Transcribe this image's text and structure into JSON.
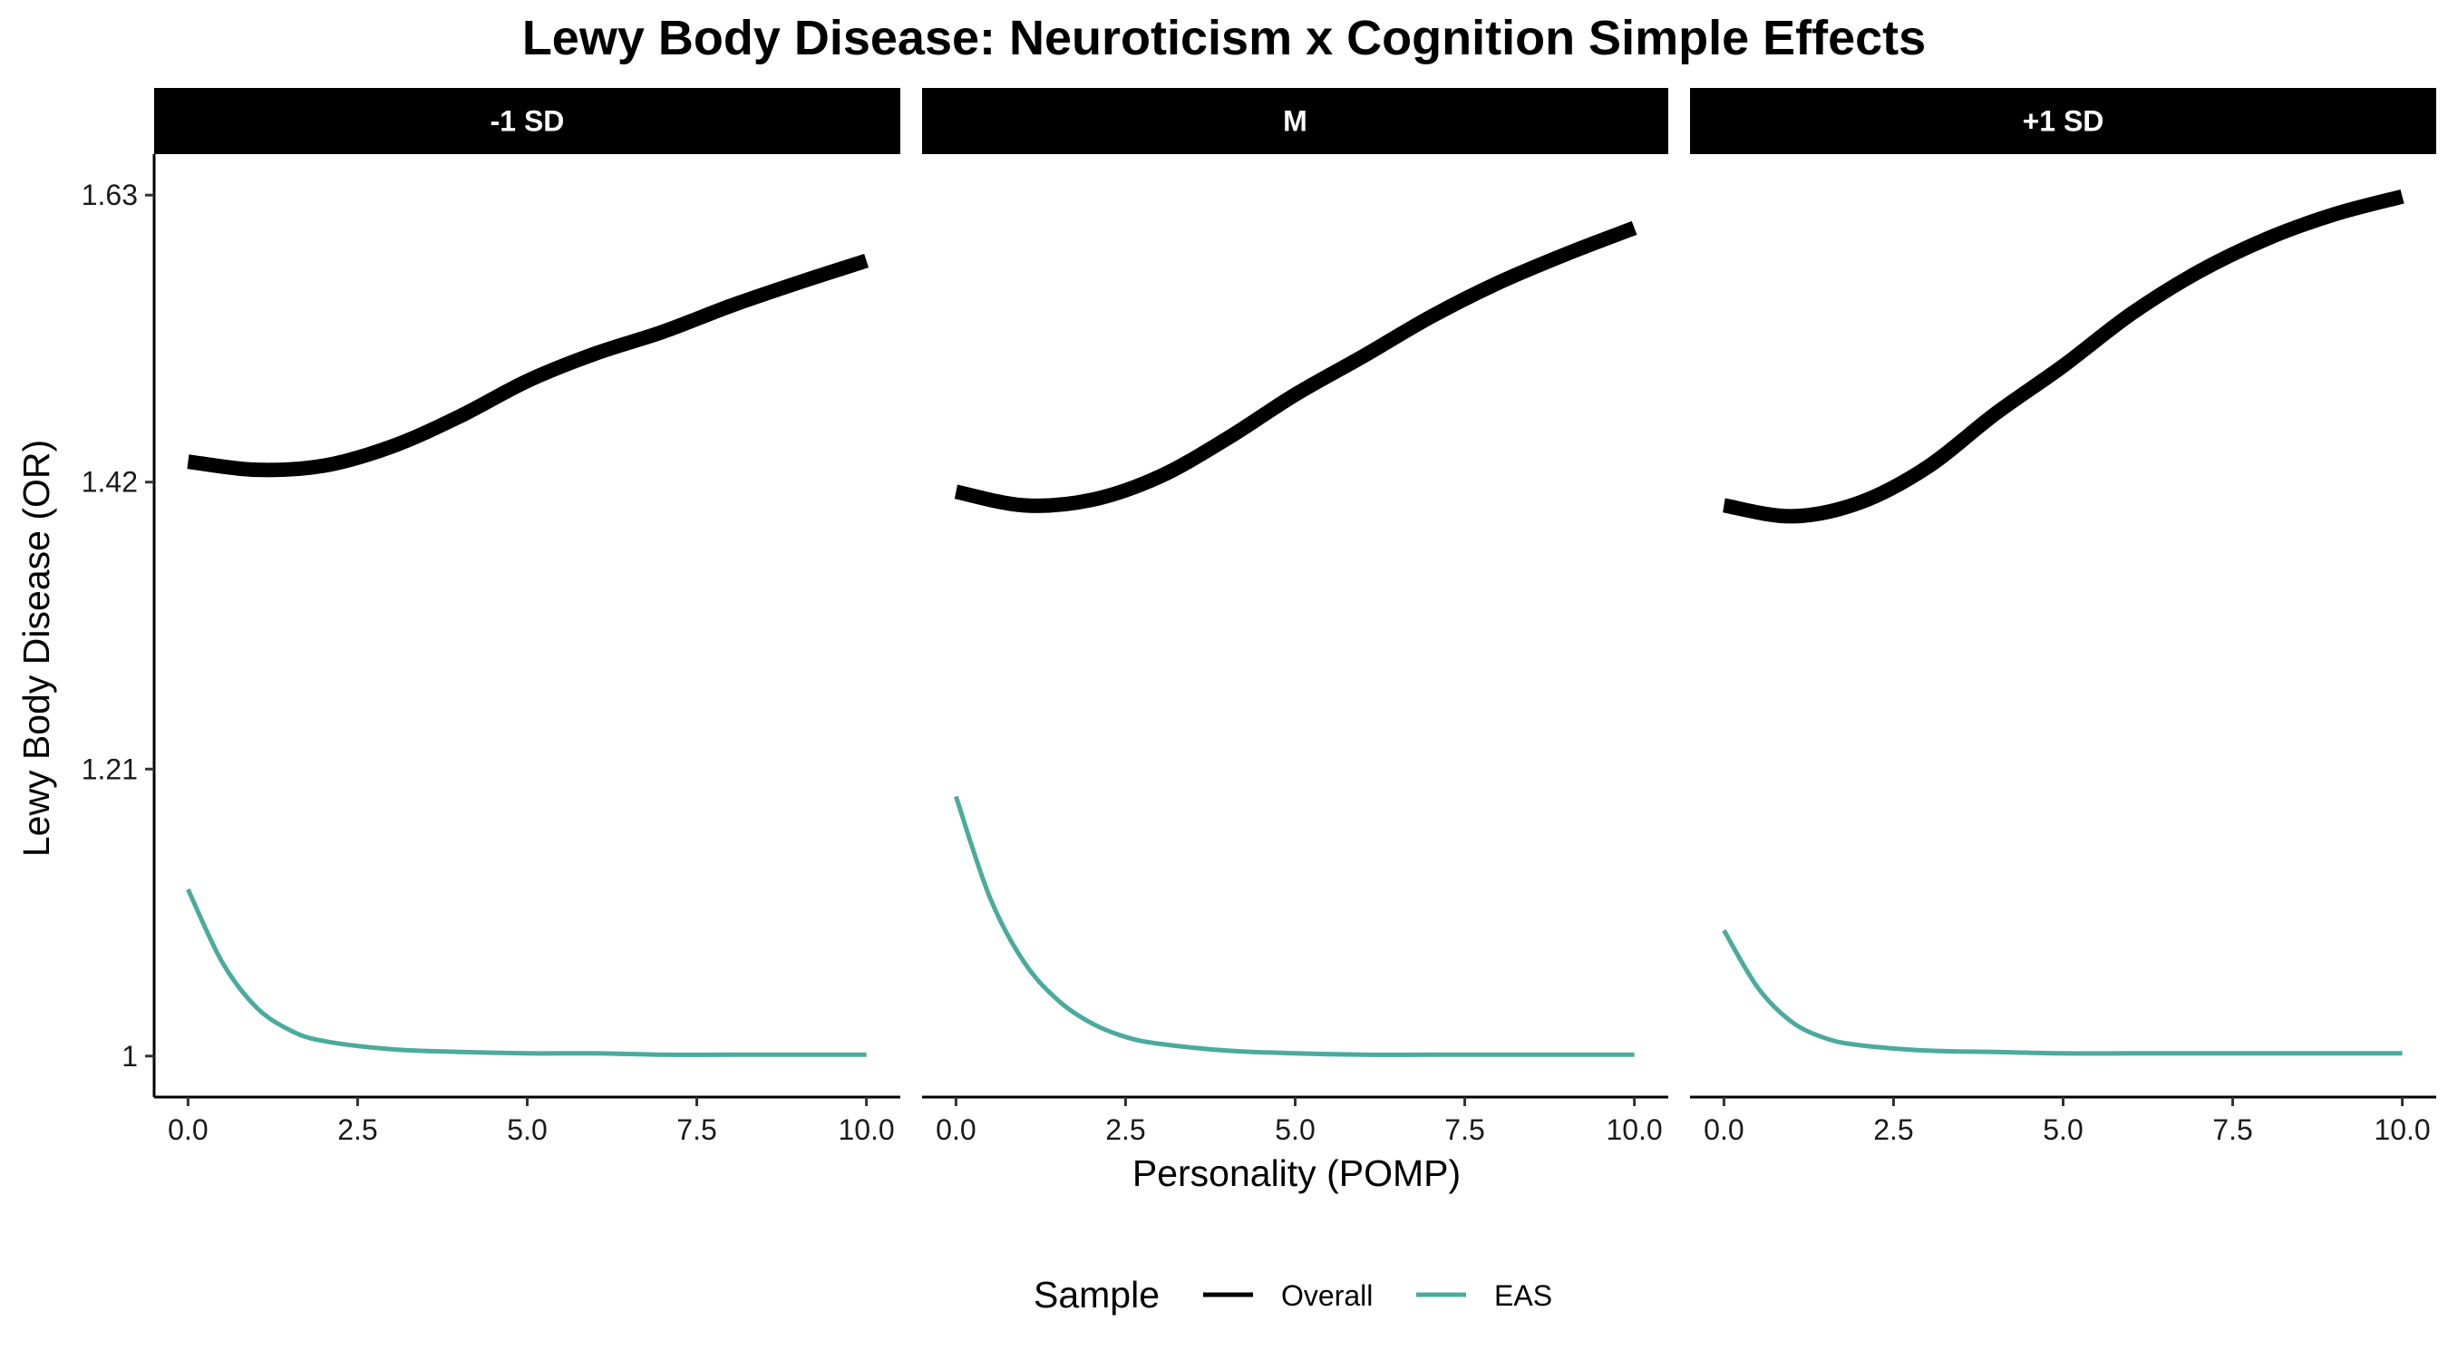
{
  "chart_data": {
    "type": "line",
    "title": "Lewy Body Disease: Neuroticism x Cognition Simple Effects",
    "xlabel": "Personality (POMP)",
    "ylabel": "Lewy Body Disease (OR)",
    "xlim": [
      -0.5,
      10.5
    ],
    "ylim": [
      0.97,
      1.66
    ],
    "x_ticks": [
      0,
      2.5,
      5,
      7.5,
      10
    ],
    "x_tick_labels": [
      "0.0",
      "2.5",
      "5.0",
      "7.5",
      "10.0"
    ],
    "y_ticks": [
      1,
      1.21,
      1.42,
      1.63
    ],
    "y_tick_labels": [
      "1",
      "1.21",
      "1.42",
      "1.63"
    ],
    "legend": {
      "title": "Sample",
      "position": "bottom",
      "entries": [
        {
          "name": "Overall",
          "color": "#000000"
        },
        {
          "name": "EAS",
          "color": "#4aab9d"
        }
      ]
    },
    "grid": false,
    "facets": [
      {
        "label": "-1 SD",
        "series": [
          {
            "name": "Overall",
            "color": "#000000",
            "x": [
              0,
              1,
              2,
              3,
              4,
              5,
              6,
              7,
              8,
              9,
              10
            ],
            "y": [
              1.435,
              1.429,
              1.432,
              1.446,
              1.468,
              1.494,
              1.514,
              1.53,
              1.549,
              1.566,
              1.582
            ]
          },
          {
            "name": "EAS",
            "color": "#4aab9d",
            "x": [
              0,
              0.5,
              1,
              1.5,
              2,
              3,
              4,
              5,
              6,
              7,
              8,
              9,
              10
            ],
            "y": [
              1.122,
              1.069,
              1.036,
              1.019,
              1.011,
              1.005,
              1.003,
              1.002,
              1.002,
              1.001,
              1.001,
              1.001,
              1.001
            ]
          }
        ]
      },
      {
        "label": "M",
        "series": [
          {
            "name": "Overall",
            "color": "#000000",
            "x": [
              0,
              1,
              2,
              3,
              4,
              5,
              6,
              7,
              8,
              9,
              10
            ],
            "y": [
              1.413,
              1.403,
              1.407,
              1.424,
              1.452,
              1.484,
              1.512,
              1.541,
              1.566,
              1.587,
              1.606
            ]
          },
          {
            "name": "EAS",
            "color": "#4aab9d",
            "x": [
              0,
              0.5,
              1,
              1.5,
              2,
              2.5,
              3,
              4,
              5,
              6,
              7,
              8,
              9,
              10
            ],
            "y": [
              1.19,
              1.116,
              1.069,
              1.041,
              1.024,
              1.014,
              1.009,
              1.004,
              1.002,
              1.001,
              1.001,
              1.001,
              1.001,
              1.001
            ]
          }
        ]
      },
      {
        "label": "+1 SD",
        "series": [
          {
            "name": "Overall",
            "color": "#000000",
            "x": [
              0,
              1,
              2,
              3,
              4,
              5,
              6,
              7,
              8,
              9,
              10
            ],
            "y": [
              1.403,
              1.395,
              1.405,
              1.431,
              1.47,
              1.505,
              1.543,
              1.574,
              1.598,
              1.616,
              1.629
            ]
          },
          {
            "name": "EAS",
            "color": "#4aab9d",
            "x": [
              0,
              0.5,
              1,
              1.5,
              2,
              3,
              4,
              5,
              6,
              7,
              8,
              9,
              10
            ],
            "y": [
              1.092,
              1.05,
              1.025,
              1.013,
              1.008,
              1.004,
              1.003,
              1.002,
              1.002,
              1.002,
              1.002,
              1.002,
              1.002
            ]
          }
        ]
      }
    ]
  }
}
